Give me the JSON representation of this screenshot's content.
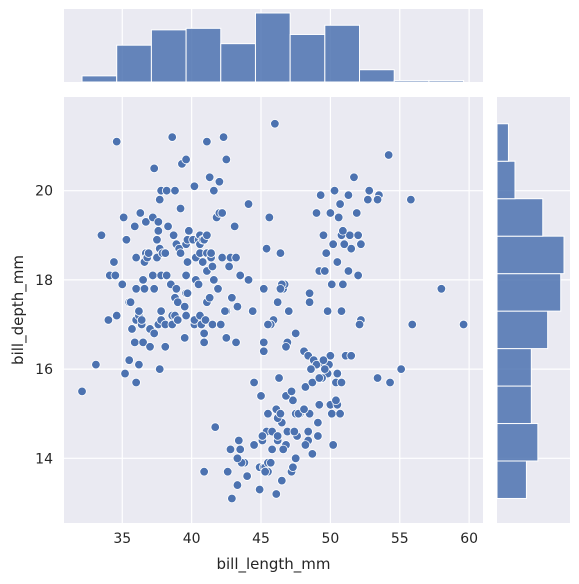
{
  "chart_data": {
    "type": "scatter",
    "subtype": "jointplot with marginal histograms",
    "xlabel": "bill_length_mm",
    "ylabel": "bill_depth_mm",
    "xlim": [
      30.8,
      61.0
    ],
    "ylim": [
      12.55,
      22.1
    ],
    "xticks": [
      35,
      40,
      45,
      50,
      55,
      60
    ],
    "yticks": [
      14,
      16,
      18,
      20
    ],
    "grid": true,
    "colors": {
      "background": "#eaeaf2",
      "grid": "#ffffff",
      "points": "#4c72b0",
      "point_edge": "#ffffff",
      "bars": "#4c72b0",
      "bar_edge": "#ffffff"
    },
    "points": [
      [
        32.1,
        15.5
      ],
      [
        33.1,
        16.1
      ],
      [
        33.5,
        19.0
      ],
      [
        34.0,
        17.1
      ],
      [
        34.1,
        18.1
      ],
      [
        34.4,
        18.4
      ],
      [
        34.5,
        18.1
      ],
      [
        34.6,
        17.2
      ],
      [
        34.6,
        21.1
      ],
      [
        35.0,
        17.9
      ],
      [
        35.1,
        19.4
      ],
      [
        35.2,
        15.9
      ],
      [
        35.3,
        18.9
      ],
      [
        35.5,
        16.2
      ],
      [
        35.5,
        17.5
      ],
      [
        35.6,
        17.5
      ],
      [
        35.7,
        16.9
      ],
      [
        35.9,
        16.6
      ],
      [
        35.9,
        19.2
      ],
      [
        36.0,
        15.7
      ],
      [
        36.0,
        17.1
      ],
      [
        36.0,
        17.8
      ],
      [
        36.0,
        18.5
      ],
      [
        36.2,
        16.1
      ],
      [
        36.2,
        17.2
      ],
      [
        36.2,
        17.3
      ],
      [
        36.3,
        19.5
      ],
      [
        36.4,
        17.0
      ],
      [
        36.4,
        17.1
      ],
      [
        36.5,
        16.6
      ],
      [
        36.5,
        18.0
      ],
      [
        36.6,
        17.8
      ],
      [
        36.6,
        18.4
      ],
      [
        36.7,
        18.6
      ],
      [
        36.7,
        19.3
      ],
      [
        36.8,
        18.5
      ],
      [
        36.9,
        18.6
      ],
      [
        37.0,
        16.5
      ],
      [
        37.0,
        16.9
      ],
      [
        37.2,
        18.1
      ],
      [
        37.2,
        19.4
      ],
      [
        37.3,
        16.8
      ],
      [
        37.3,
        17.8
      ],
      [
        37.3,
        20.5
      ],
      [
        37.5,
        18.5
      ],
      [
        37.5,
        18.9
      ],
      [
        37.6,
        17.0
      ],
      [
        37.6,
        19.1
      ],
      [
        37.6,
        19.3
      ],
      [
        37.7,
        16.0
      ],
      [
        37.7,
        18.7
      ],
      [
        37.7,
        19.8
      ],
      [
        37.8,
        17.1
      ],
      [
        37.8,
        17.3
      ],
      [
        37.8,
        18.1
      ],
      [
        37.8,
        20.0
      ],
      [
        37.9,
        18.6
      ],
      [
        38.1,
        16.5
      ],
      [
        38.1,
        17.0
      ],
      [
        38.1,
        18.6
      ],
      [
        38.2,
        18.1
      ],
      [
        38.2,
        20.0
      ],
      [
        38.3,
        19.2
      ],
      [
        38.5,
        17.9
      ],
      [
        38.6,
        17.0
      ],
      [
        38.6,
        17.2
      ],
      [
        38.6,
        21.2
      ],
      [
        38.7,
        19.0
      ],
      [
        38.8,
        17.2
      ],
      [
        38.8,
        17.6
      ],
      [
        38.8,
        20.0
      ],
      [
        38.9,
        17.8
      ],
      [
        38.9,
        18.8
      ],
      [
        39.0,
        17.1
      ],
      [
        39.0,
        17.5
      ],
      [
        39.1,
        18.7
      ],
      [
        39.2,
        18.6
      ],
      [
        39.2,
        19.6
      ],
      [
        39.3,
        20.6
      ],
      [
        39.5,
        16.7
      ],
      [
        39.5,
        17.4
      ],
      [
        39.6,
        17.2
      ],
      [
        39.6,
        17.7
      ],
      [
        39.6,
        18.1
      ],
      [
        39.6,
        18.8
      ],
      [
        39.6,
        20.7
      ],
      [
        39.7,
        17.7
      ],
      [
        39.7,
        18.4
      ],
      [
        39.7,
        18.9
      ],
      [
        39.8,
        19.1
      ],
      [
        40.1,
        18.9
      ],
      [
        40.2,
        17.0
      ],
      [
        40.2,
        17.1
      ],
      [
        40.2,
        20.1
      ],
      [
        40.3,
        18.0
      ],
      [
        40.3,
        18.5
      ],
      [
        40.5,
        17.9
      ],
      [
        40.5,
        18.9
      ],
      [
        40.6,
        17.2
      ],
      [
        40.6,
        18.6
      ],
      [
        40.6,
        18.8
      ],
      [
        40.6,
        19.0
      ],
      [
        40.7,
        17.0
      ],
      [
        40.8,
        18.4
      ],
      [
        40.8,
        18.9
      ],
      [
        40.9,
        16.6
      ],
      [
        40.9,
        16.8
      ],
      [
        40.9,
        18.9
      ],
      [
        41.0,
        17.1
      ],
      [
        41.1,
        17.5
      ],
      [
        41.1,
        18.2
      ],
      [
        41.1,
        18.6
      ],
      [
        41.1,
        19.0
      ],
      [
        41.1,
        21.1
      ],
      [
        41.3,
        17.6
      ],
      [
        41.3,
        20.3
      ],
      [
        41.4,
        18.5
      ],
      [
        41.4,
        18.6
      ],
      [
        41.5,
        17.0
      ],
      [
        41.5,
        18.3
      ],
      [
        41.6,
        18.0
      ],
      [
        41.6,
        20.0
      ],
      [
        41.7,
        14.7
      ],
      [
        41.8,
        19.4
      ],
      [
        41.9,
        17.8
      ],
      [
        42.0,
        19.5
      ],
      [
        42.0,
        20.2
      ],
      [
        42.1,
        17.0
      ],
      [
        42.2,
        18.5
      ],
      [
        42.2,
        19.5
      ],
      [
        42.3,
        21.2
      ],
      [
        42.4,
        17.3
      ],
      [
        42.5,
        16.7
      ],
      [
        42.5,
        17.3
      ],
      [
        42.5,
        20.7
      ],
      [
        42.7,
        18.3
      ],
      [
        42.8,
        18.5
      ],
      [
        42.9,
        17.6
      ],
      [
        43.1,
        19.2
      ],
      [
        43.2,
        16.6
      ],
      [
        43.2,
        18.5
      ],
      [
        43.3,
        13.4
      ],
      [
        43.3,
        17.4
      ],
      [
        43.5,
        18.1
      ],
      [
        43.8,
        13.9
      ],
      [
        44.0,
        13.6
      ],
      [
        44.1,
        18.0
      ],
      [
        44.1,
        19.7
      ],
      [
        44.4,
        17.3
      ],
      [
        44.5,
        14.3
      ],
      [
        44.5,
        15.7
      ],
      [
        44.9,
        13.3
      ],
      [
        44.9,
        13.8
      ],
      [
        45.0,
        15.4
      ],
      [
        45.1,
        14.4
      ],
      [
        45.2,
        13.8
      ],
      [
        45.2,
        16.4
      ],
      [
        45.3,
        13.8
      ],
      [
        45.4,
        14.6
      ],
      [
        45.5,
        13.7
      ],
      [
        45.5,
        15.0
      ],
      [
        45.6,
        17.0
      ],
      [
        45.7,
        13.9
      ],
      [
        45.8,
        14.6
      ],
      [
        46.1,
        13.2
      ],
      [
        46.1,
        15.1
      ],
      [
        46.2,
        14.4
      ],
      [
        46.4,
        15.0
      ],
      [
        46.5,
        13.5
      ],
      [
        46.8,
        14.3
      ],
      [
        46.9,
        14.6
      ],
      [
        47.0,
        17.3
      ],
      [
        47.2,
        13.7
      ],
      [
        47.3,
        13.8
      ],
      [
        47.6,
        14.5
      ],
      [
        47.8,
        15.0
      ],
      [
        48.1,
        15.1
      ],
      [
        48.2,
        14.3
      ],
      [
        48.4,
        14.4
      ],
      [
        48.5,
        15.0
      ],
      [
        48.7,
        14.1
      ],
      [
        49.1,
        14.5
      ],
      [
        49.5,
        16.1
      ],
      [
        49.9,
        16.1
      ],
      [
        50.0,
        15.2
      ],
      [
        50.1,
        15.0
      ],
      [
        50.4,
        15.3
      ],
      [
        50.5,
        15.9
      ],
      [
        50.8,
        15.7
      ],
      [
        51.1,
        16.3
      ],
      [
        52.1,
        17.0
      ],
      [
        52.8,
        20.0
      ],
      [
        53.5,
        19.9
      ],
      [
        55.8,
        19.8
      ],
      [
        58.0,
        17.8
      ],
      [
        59.6,
        17.0
      ],
      [
        46.6,
        17.8
      ],
      [
        47.5,
        16.8
      ],
      [
        49.2,
        18.2
      ],
      [
        50.2,
        18.8
      ],
      [
        51.5,
        18.7
      ],
      [
        46.4,
        18.6
      ],
      [
        49.7,
        18.6
      ],
      [
        51.4,
        19.0
      ],
      [
        50.9,
        17.9
      ],
      [
        52.7,
        19.8
      ],
      [
        50.5,
        18.4
      ],
      [
        49.5,
        19.0
      ],
      [
        51.3,
        18.2
      ],
      [
        52.0,
        18.1
      ],
      [
        50.3,
        20.0
      ],
      [
        49.6,
        18.2
      ],
      [
        50.8,
        19.0
      ],
      [
        47.0,
        17.3
      ],
      [
        45.9,
        17.1
      ],
      [
        48.1,
        16.4
      ],
      [
        52.2,
        18.8
      ],
      [
        45.4,
        18.7
      ],
      [
        51.7,
        20.3
      ],
      [
        46.9,
        16.6
      ],
      [
        50.7,
        19.7
      ],
      [
        45.2,
        17.8
      ],
      [
        45.6,
        19.4
      ],
      [
        51.9,
        19.5
      ],
      [
        46.8,
        16.5
      ],
      [
        50.1,
        17.9
      ],
      [
        49.8,
        17.3
      ],
      [
        46.7,
        17.9
      ],
      [
        48.5,
        17.5
      ],
      [
        50.6,
        19.4
      ],
      [
        54.2,
        20.8
      ],
      [
        46.0,
        21.5
      ],
      [
        50.9,
        19.1
      ],
      [
        51.3,
        19.9
      ],
      [
        42.4,
        17.3
      ],
      [
        43.5,
        18.1
      ],
      [
        49.0,
        19.5
      ],
      [
        48.5,
        17.7
      ],
      [
        53.4,
        19.8
      ],
      [
        45.7,
        17.0
      ],
      [
        46.5,
        17.9
      ],
      [
        50.0,
        19.5
      ],
      [
        51.0,
        18.8
      ],
      [
        45.5,
        17.0
      ],
      [
        52.0,
        19.0
      ],
      [
        46.4,
        17.8
      ],
      [
        49.3,
        19.9
      ],
      [
        58.0,
        17.8
      ],
      [
        46.2,
        17.5
      ],
      [
        45.2,
        16.6
      ],
      [
        49.2,
        15.2
      ],
      [
        50.5,
        15.2
      ],
      [
        47.5,
        15.0
      ],
      [
        50.2,
        14.3
      ],
      [
        49.8,
        15.9
      ],
      [
        52.2,
        17.1
      ],
      [
        45.1,
        14.5
      ],
      [
        46.5,
        14.8
      ],
      [
        46.3,
        15.8
      ],
      [
        42.9,
        13.1
      ],
      [
        46.1,
        15.1
      ],
      [
        47.8,
        15.0
      ],
      [
        48.2,
        15.6
      ],
      [
        50.0,
        16.3
      ],
      [
        47.3,
        15.3
      ],
      [
        42.8,
        14.2
      ],
      [
        45.1,
        14.5
      ],
      [
        59.6,
        17.0
      ],
      [
        49.1,
        14.8
      ],
      [
        48.4,
        16.3
      ],
      [
        42.6,
        13.7
      ],
      [
        44.4,
        17.3
      ],
      [
        48.8,
        16.2
      ],
      [
        40.9,
        13.7
      ],
      [
        49.0,
        16.1
      ],
      [
        43.5,
        14.2
      ],
      [
        50.7,
        15.0
      ],
      [
        47.7,
        15.0
      ],
      [
        46.5,
        13.5
      ],
      [
        50.4,
        15.7
      ],
      [
        46.2,
        14.5
      ],
      [
        48.6,
        16.0
      ],
      [
        46.8,
        15.4
      ],
      [
        51.5,
        16.3
      ],
      [
        43.6,
        13.9
      ],
      [
        49.9,
        16.1
      ],
      [
        45.8,
        14.2
      ],
      [
        50.4,
        15.3
      ],
      [
        45.5,
        13.9
      ],
      [
        53.4,
        15.8
      ],
      [
        46.2,
        14.9
      ],
      [
        49.4,
        15.8
      ],
      [
        48.4,
        14.6
      ],
      [
        44.0,
        13.6
      ],
      [
        47.5,
        14.0
      ],
      [
        46.8,
        14.3
      ],
      [
        49.6,
        16.0
      ],
      [
        43.3,
        14.0
      ],
      [
        46.4,
        15.0
      ],
      [
        49.1,
        14.8
      ],
      [
        44.5,
        15.7
      ],
      [
        50.8,
        17.3
      ],
      [
        52.1,
        17.0
      ],
      [
        44.9,
        13.3
      ],
      [
        48.1,
        15.1
      ],
      [
        47.4,
        14.6
      ],
      [
        43.4,
        14.4
      ],
      [
        55.9,
        17.0
      ],
      [
        45.3,
        13.7
      ],
      [
        48.7,
        15.7
      ],
      [
        49.5,
        16.2
      ],
      [
        50.5,
        15.9
      ],
      [
        47.2,
        15.5
      ],
      [
        55.1,
        16.0
      ],
      [
        49.2,
        15.8
      ],
      [
        46.6,
        14.2
      ],
      [
        54.3,
        15.7
      ],
      [
        48.2,
        14.3
      ],
      [
        50.8,
        15.7
      ],
      [
        45.7,
        13.9
      ]
    ],
    "x_hist": {
      "bin_edges": [
        32.1,
        34.6,
        37.1,
        39.6,
        42.1,
        44.6,
        47.1,
        49.6,
        52.1,
        54.6,
        57.1,
        59.6
      ],
      "counts": [
        4,
        24,
        34,
        35,
        25,
        45,
        31,
        37,
        8,
        1,
        1
      ]
    },
    "y_hist": {
      "bin_edges": [
        13.1,
        13.94,
        14.78,
        15.62,
        16.46,
        17.3,
        18.14,
        18.98,
        19.82,
        20.66,
        21.5
      ],
      "counts": [
        18,
        25,
        21,
        21,
        31,
        39,
        41,
        28,
        11,
        7
      ]
    }
  }
}
